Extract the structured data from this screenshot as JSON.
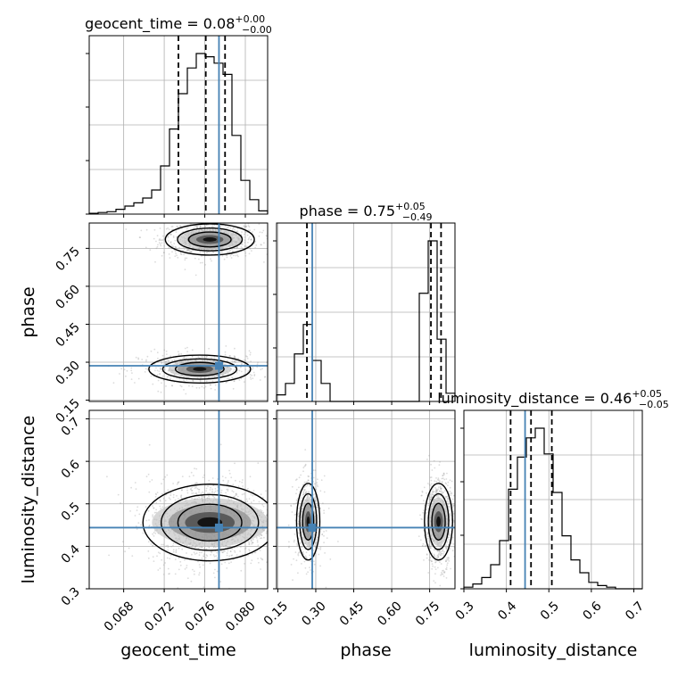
{
  "chart_data": {
    "type": "corner",
    "parameters": [
      "geocent_time",
      "phase",
      "luminosity_distance"
    ],
    "titles": [
      {
        "name": "geocent_time",
        "median": "0.08",
        "plus": "+0.00",
        "minus": "−0.00"
      },
      {
        "name": "phase",
        "median": "0.75",
        "plus": "+0.05",
        "minus": "−0.49"
      },
      {
        "name": "luminosity_distance",
        "median": "0.46",
        "plus": "+0.05",
        "minus": "−0.05"
      }
    ],
    "axes": {
      "geocent_time": {
        "label": "geocent_time",
        "range": [
          0.0646,
          0.0822
        ],
        "ticks": [
          "0.068",
          "0.072",
          "0.076",
          "0.080"
        ]
      },
      "phase": {
        "label": "phase",
        "range": [
          0.145,
          0.85
        ],
        "ticks": [
          "0.15",
          "0.30",
          "0.45",
          "0.60",
          "0.75"
        ]
      },
      "luminosity_distance": {
        "label": "luminosity_distance",
        "range": [
          0.3,
          0.72
        ],
        "ticks": [
          "0.3",
          "0.4",
          "0.5",
          "0.6",
          "0.7"
        ]
      }
    },
    "injection": {
      "geocent_time": 0.0774,
      "phase": 0.286,
      "luminosity_distance": 0.444
    },
    "quantiles": {
      "geocent_time": [
        0.0734,
        0.0761,
        0.078
      ],
      "phase": [
        0.265,
        0.755,
        0.795
      ],
      "luminosity_distance": [
        0.41,
        0.458,
        0.507
      ]
    },
    "histograms": {
      "geocent_time": {
        "bin_edges": [
          0.0646,
          0.06548,
          0.06636,
          0.06724,
          0.06812,
          0.069,
          0.06988,
          0.07076,
          0.07164,
          0.07252,
          0.0734,
          0.07428,
          0.07516,
          0.07604,
          0.07692,
          0.0778,
          0.07868,
          0.07956,
          0.08044,
          0.08132,
          0.0822
        ],
        "counts": [
          0.5,
          1,
          1.5,
          3,
          5,
          7,
          10,
          15,
          30,
          53,
          75,
          91,
          100,
          98,
          94,
          87,
          49,
          21,
          9,
          2
        ]
      },
      "phase": {
        "bin_edges": [
          0.145,
          0.18025,
          0.2155,
          0.25075,
          0.286,
          0.32125,
          0.3565,
          0.39175,
          0.427,
          0.46225,
          0.4975,
          0.53275,
          0.568,
          0.60325,
          0.6385,
          0.67375,
          0.709,
          0.74425,
          0.7795,
          0.81475,
          0.85
        ],
        "counts": [
          4,
          11,
          29,
          47,
          25,
          11,
          0,
          0,
          0,
          0,
          0,
          0,
          0,
          0,
          0,
          0,
          66,
          98,
          38,
          5
        ]
      },
      "luminosity_distance": {
        "bin_edges": [
          0.3,
          0.321,
          0.342,
          0.363,
          0.384,
          0.405,
          0.426,
          0.447,
          0.468,
          0.489,
          0.51,
          0.531,
          0.552,
          0.573,
          0.594,
          0.615,
          0.636,
          0.657,
          0.678,
          0.699,
          0.72
        ],
        "counts": [
          1,
          3,
          7,
          15,
          30,
          62,
          82,
          94,
          100,
          84,
          60,
          33,
          18,
          10,
          4,
          2,
          1,
          0,
          0,
          0
        ]
      }
    },
    "modes_2d": {
      "phase_vs_geocent_time": [
        {
          "cx": 0.0765,
          "cy": 0.785,
          "sx": 0.0019,
          "sy": 0.028,
          "weight": 0.6
        },
        {
          "cx": 0.0755,
          "cy": 0.273,
          "sx": 0.0024,
          "sy": 0.025,
          "weight": 0.4
        }
      ],
      "luminosity_distance_vs_geocent_time": [
        {
          "cx": 0.0765,
          "cy": 0.456,
          "sx": 0.0024,
          "sy": 0.041,
          "weight": 1.0
        }
      ],
      "luminosity_distance_vs_phase": [
        {
          "cx": 0.27,
          "cy": 0.458,
          "sx": 0.022,
          "sy": 0.041,
          "weight": 0.4
        },
        {
          "cx": 0.785,
          "cy": 0.458,
          "sx": 0.024,
          "sy": 0.041,
          "weight": 0.6
        }
      ]
    },
    "grid": true,
    "injection_color": "#4682b4",
    "contour_color": "#000000",
    "quantile_color": "#000000"
  }
}
